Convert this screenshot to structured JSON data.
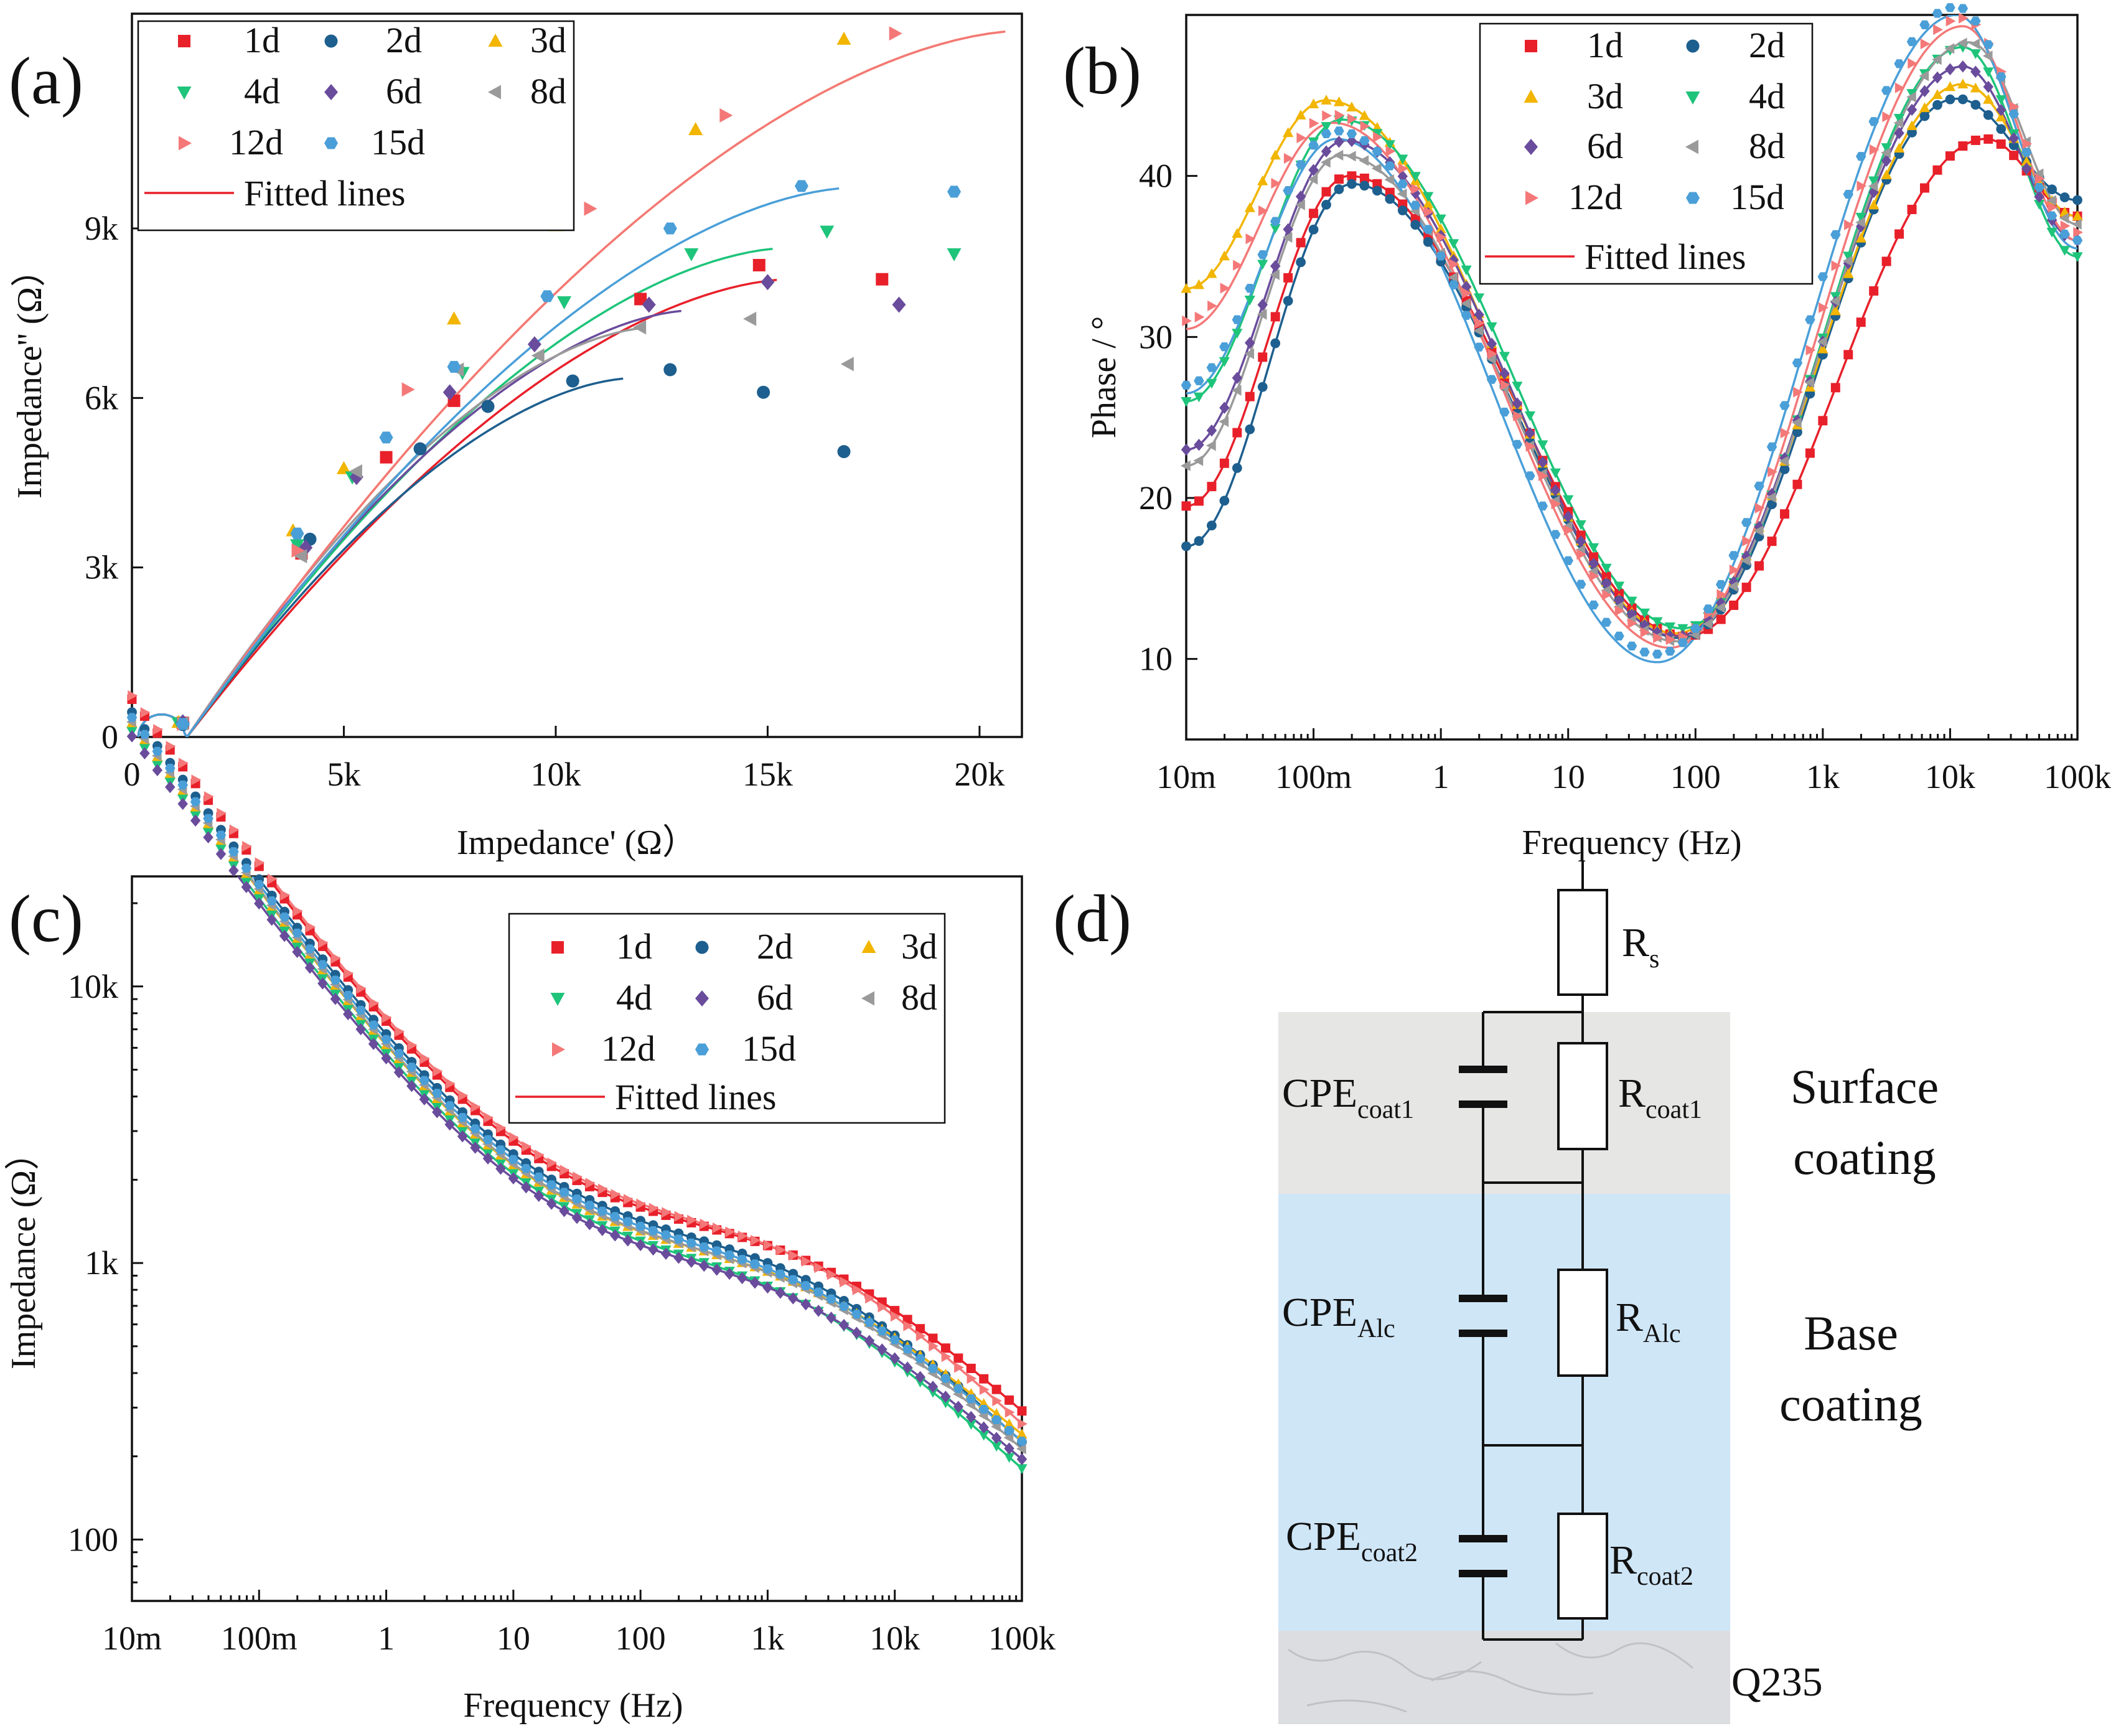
{
  "panels": {
    "a": {
      "label": "(a)"
    },
    "b": {
      "label": "(b)"
    },
    "c": {
      "label": "(c)"
    },
    "d": {
      "label": "(d)"
    }
  },
  "legend": {
    "fitted": "Fitted lines",
    "series": [
      {
        "name": "1d",
        "color": "#e8202a",
        "marker": "square"
      },
      {
        "name": "2d",
        "color": "#1d5f8e",
        "marker": "circle"
      },
      {
        "name": "3d",
        "color": "#f2b500",
        "marker": "triangle-up"
      },
      {
        "name": "4d",
        "color": "#1ec47a",
        "marker": "triangle-down"
      },
      {
        "name": "6d",
        "color": "#6a4c9c",
        "marker": "diamond"
      },
      {
        "name": "8d",
        "color": "#9a9a9a",
        "marker": "triangle-left"
      },
      {
        "name": "12d",
        "color": "#f47878",
        "marker": "triangle-right"
      },
      {
        "name": "15d",
        "color": "#4a9fd8",
        "marker": "hexagon"
      }
    ]
  },
  "chart_data": [
    {
      "id": "a",
      "type": "scatter",
      "title": "",
      "xlabel": "Impedance' (Ω）",
      "ylabel": "Impedance'' (Ω）",
      "xlim": [
        0,
        21000
      ],
      "ylim": [
        0,
        12800
      ],
      "xticks": [
        0,
        5000,
        10000,
        15000,
        20000
      ],
      "xtick_labels": [
        "0",
        "5k",
        "10k",
        "15k",
        "20k"
      ],
      "yticks": [
        0,
        3000,
        6000,
        9000
      ],
      "ytick_labels": [
        "0",
        "3k",
        "6k",
        "9k"
      ],
      "series": [
        {
          "name": "1d",
          "fit_peak": [
            15500,
            8100
          ],
          "fit_end": [
            20600,
            7400
          ],
          "points": [
            [
              1200,
              250
            ],
            [
              4000,
              3250
            ],
            [
              6000,
              4950
            ],
            [
              7600,
              5950
            ],
            [
              12000,
              7750
            ],
            [
              14800,
              8350
            ],
            [
              17700,
              8100
            ]
          ]
        },
        {
          "name": "2d",
          "fit_peak": [
            11800,
            6350
          ],
          "fit_end": [
            16800,
            5300
          ],
          "points": [
            [
              1200,
              220
            ],
            [
              4200,
              3500
            ],
            [
              6800,
              5100
            ],
            [
              8400,
              5850
            ],
            [
              10400,
              6300
            ],
            [
              12700,
              6500
            ],
            [
              14900,
              6100
            ],
            [
              16800,
              5050
            ]
          ]
        },
        {
          "name": "3d",
          "fit_peak": [
            21000,
            12500
          ],
          "fit_end": [
            21000,
            12500
          ],
          "points": [
            [
              1100,
              260
            ],
            [
              3800,
              3650
            ],
            [
              5000,
              4750
            ],
            [
              7600,
              7400
            ],
            [
              10000,
              9050
            ],
            [
              13300,
              10750
            ],
            [
              16800,
              12350
            ]
          ]
        },
        {
          "name": "4d",
          "fit_peak": [
            15400,
            8650
          ],
          "fit_end": [
            18800,
            8300
          ],
          "points": [
            [
              1100,
              250
            ],
            [
              3900,
              3400
            ],
            [
              5200,
              4600
            ],
            [
              7800,
              6450
            ],
            [
              10200,
              7700
            ],
            [
              13200,
              8550
            ],
            [
              16400,
              8950
            ],
            [
              19400,
              8550
            ]
          ]
        },
        {
          "name": "6d",
          "fit_peak": [
            13200,
            7550
          ],
          "fit_end": [
            16900,
            7250
          ],
          "points": [
            [
              1200,
              260
            ],
            [
              4100,
              3350
            ],
            [
              5300,
              4600
            ],
            [
              7500,
              6100
            ],
            [
              9500,
              6950
            ],
            [
              12200,
              7650
            ],
            [
              15000,
              8050
            ],
            [
              18100,
              7650
            ]
          ]
        },
        {
          "name": "8d",
          "fit_peak": [
            12300,
            7250
          ],
          "fit_end": [
            16900,
            6700
          ],
          "points": [
            [
              1200,
              240
            ],
            [
              4000,
              3200
            ],
            [
              5300,
              4700
            ],
            [
              7700,
              6500
            ],
            [
              9600,
              6750
            ],
            [
              12000,
              7250
            ],
            [
              14600,
              7400
            ],
            [
              16900,
              6600
            ]
          ]
        },
        {
          "name": "12d",
          "fit_peak": [
            21000,
            12500
          ],
          "fit_end": [
            21000,
            12500
          ],
          "points": [
            [
              1200,
              230
            ],
            [
              3900,
              3300
            ],
            [
              6500,
              6150
            ],
            [
              9800,
              9100
            ],
            [
              10800,
              9350
            ],
            [
              14000,
              11000
            ],
            [
              18000,
              12450
            ]
          ]
        },
        {
          "name": "15d",
          "fit_peak": [
            17000,
            9720
          ],
          "fit_end": [
            19400,
            9620
          ],
          "points": [
            [
              1200,
              230
            ],
            [
              3900,
              3600
            ],
            [
              6000,
              5300
            ],
            [
              7600,
              6550
            ],
            [
              9800,
              7800
            ],
            [
              12700,
              9000
            ],
            [
              15800,
              9750
            ],
            [
              19400,
              9650
            ]
          ]
        }
      ]
    },
    {
      "id": "b",
      "type": "scatter",
      "xlabel": "Frequency (Hz)",
      "ylabel": "Phase / °",
      "xscale": "log",
      "xlim_log10": [
        -2,
        5
      ],
      "ylim": [
        5,
        50
      ],
      "xtick_labels": [
        "10m",
        "100m",
        "1",
        "10",
        "100",
        "1k",
        "10k",
        "100k"
      ],
      "yticks": [
        10,
        20,
        30,
        40
      ],
      "ytick_labels": [
        "10",
        "20",
        "30",
        "40"
      ],
      "series": [
        {
          "name": "1d",
          "low0": 19.5,
          "peak1": [
            -0.72,
            40.0
          ],
          "valley": [
            1.92,
            11.4
          ],
          "peak2": [
            4.28,
            42.3
          ],
          "end": 37.5,
          "gap": 0
        },
        {
          "name": "2d",
          "low0": 17.0,
          "peak1": [
            -0.7,
            39.5
          ],
          "valley": [
            1.88,
            11.3
          ],
          "peak2": [
            4.05,
            44.8
          ],
          "end": 38.5,
          "gap": 0
        },
        {
          "name": "3d",
          "low0": 33.0,
          "peak1": [
            -0.9,
            44.7
          ],
          "valley": [
            1.85,
            11.6
          ],
          "peak2": [
            4.1,
            45.7
          ],
          "end": 37.5,
          "gap": 0
        },
        {
          "name": "4d",
          "low0": 26.0,
          "peak1": [
            -0.78,
            43.5
          ],
          "valley": [
            1.9,
            11.9
          ],
          "peak2": [
            4.1,
            48.0
          ],
          "end": 35.0,
          "gap": 0
        },
        {
          "name": "6d",
          "low0": 23.0,
          "peak1": [
            -0.75,
            42.2
          ],
          "valley": [
            1.85,
            11.4
          ],
          "peak2": [
            4.1,
            46.8
          ],
          "end": 36.0,
          "gap": 0
        },
        {
          "name": "8d",
          "low0": 22.0,
          "peak1": [
            -0.78,
            41.3
          ],
          "valley": [
            1.85,
            11.1
          ],
          "peak2": [
            4.15,
            48.3
          ],
          "end": 37.0,
          "gap": 0
        },
        {
          "name": "12d",
          "low0": 30.5,
          "peak1": [
            -0.85,
            43.3
          ],
          "valley": [
            1.8,
            10.7
          ],
          "peak2": [
            4.1,
            49.3
          ],
          "end": 36.0,
          "gap": 0.5
        },
        {
          "name": "15d",
          "low0": 26.5,
          "peak1": [
            -0.82,
            42.3
          ],
          "valley": [
            1.7,
            9.8
          ],
          "peak2": [
            4.05,
            50.0
          ],
          "end": 35.5,
          "gap": 0.5
        }
      ]
    },
    {
      "id": "c",
      "type": "scatter",
      "xlabel": "Frequency (Hz)",
      "ylabel": "Impedance (Ω）",
      "xscale": "log",
      "yscale": "log",
      "xlim_log10": [
        -2,
        5
      ],
      "ylim": [
        60,
        25000
      ],
      "xtick_labels": [
        "10m",
        "100m",
        "1",
        "10",
        "100",
        "1k",
        "10k",
        "100k"
      ],
      "yticks": [
        100,
        1000,
        10000
      ],
      "ytick_labels": [
        "100",
        "1k",
        "10k"
      ],
      "series": [
        {
          "name": "1d",
          "plateau": 1280,
          "hf_drop": 3.45,
          "hf_end": 140
        },
        {
          "name": "2d",
          "plateau": 1150,
          "hf_drop": 3.35,
          "hf_end": 105
        },
        {
          "name": "3d",
          "plateau": 1050,
          "hf_drop": 3.35,
          "hf_end": 120
        },
        {
          "name": "4d",
          "plateau": 980,
          "hf_drop": 3.25,
          "hf_end": 85
        },
        {
          "name": "6d",
          "plateau": 940,
          "hf_drop": 3.3,
          "hf_end": 95
        },
        {
          "name": "8d",
          "plateau": 1060,
          "hf_drop": 3.35,
          "hf_end": 100
        },
        {
          "name": "12d",
          "plateau": 1320,
          "hf_drop": 3.4,
          "hf_end": 120
        },
        {
          "name": "15d",
          "plateau": 1100,
          "hf_drop": 3.3,
          "hf_end": 110
        }
      ]
    }
  ],
  "circuit": {
    "rs": {
      "main": "R",
      "sub": "s"
    },
    "cpe1": {
      "main": "CPE",
      "sub": "coat1"
    },
    "r1": {
      "main": "R",
      "sub": "coat1"
    },
    "cpe2": {
      "main": "CPE",
      "sub": "Alc"
    },
    "r2": {
      "main": "R",
      "sub": "Alc"
    },
    "cpe3": {
      "main": "CPE",
      "sub": "coat2"
    },
    "r3": {
      "main": "R",
      "sub": "coat2"
    },
    "surface_line1": "Surface",
    "surface_line2": "coating",
    "base_line1": "Base",
    "base_line2": "coating",
    "substrate": "Q235",
    "colors": {
      "surface": "#e6e6e4",
      "base": "#cfe6f7",
      "substrate": "#dcdde0"
    }
  }
}
